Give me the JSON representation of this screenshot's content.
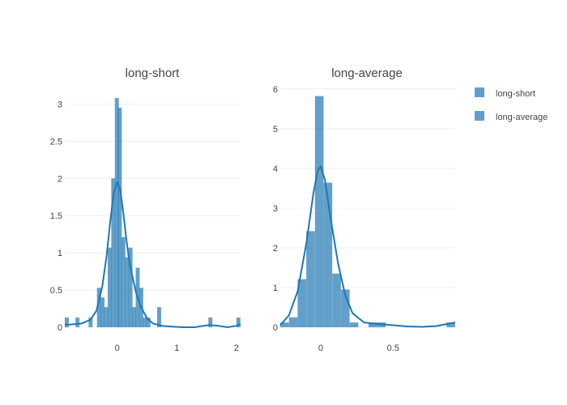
{
  "chart_data": [
    {
      "type": "bar",
      "title": "long-short",
      "xlabel": "",
      "ylabel": "",
      "xlim": [
        -0.88,
        2.07
      ],
      "ylim": [
        0,
        3.2
      ],
      "x_ticks": [
        0,
        1,
        2
      ],
      "x_tick_labels": [
        "0",
        "1",
        "2"
      ],
      "y_ticks": [
        0,
        0.5,
        1,
        1.5,
        2,
        2.5,
        3
      ],
      "y_tick_labels": [
        "0",
        "0.5",
        "1",
        "1.5",
        "2",
        "2.5",
        "3"
      ],
      "grid": true,
      "series_name": "long-short",
      "color": "#1f77b4",
      "bin_width": 0.0667,
      "bins": [
        {
          "x0": -0.88,
          "y": 0.13
        },
        {
          "x0": -0.7,
          "y": 0.13
        },
        {
          "x0": -0.48,
          "y": 0.13
        },
        {
          "x0": -0.34,
          "y": 0.53
        },
        {
          "x0": -0.28,
          "y": 0.4
        },
        {
          "x0": -0.22,
          "y": 0.27
        },
        {
          "x0": -0.16,
          "y": 1.07
        },
        {
          "x0": -0.1,
          "y": 2.0
        },
        {
          "x0": -0.04,
          "y": 3.08
        },
        {
          "x0": 0.01,
          "y": 2.95
        },
        {
          "x0": 0.07,
          "y": 1.21
        },
        {
          "x0": 0.13,
          "y": 0.94
        },
        {
          "x0": 0.19,
          "y": 1.07
        },
        {
          "x0": 0.25,
          "y": 0.27
        },
        {
          "x0": 0.31,
          "y": 0.8
        },
        {
          "x0": 0.37,
          "y": 0.53
        },
        {
          "x0": 0.43,
          "y": 0.13
        },
        {
          "x0": 0.49,
          "y": 0.13
        },
        {
          "x0": 0.67,
          "y": 0.27
        },
        {
          "x0": 1.53,
          "y": 0.13
        },
        {
          "x0": 2.0,
          "y": 0.13
        }
      ],
      "kde": {
        "x": [
          -0.88,
          -0.6,
          -0.45,
          -0.35,
          -0.25,
          -0.18,
          -0.12,
          -0.06,
          0.0,
          0.05,
          0.1,
          0.15,
          0.2,
          0.25,
          0.32,
          0.4,
          0.5,
          0.6,
          0.75,
          0.9,
          1.1,
          1.3,
          1.45,
          1.55,
          1.7,
          1.85,
          2.0,
          2.07
        ],
        "y": [
          0.03,
          0.05,
          0.1,
          0.22,
          0.55,
          0.95,
          1.4,
          1.8,
          1.95,
          1.85,
          1.55,
          1.2,
          0.9,
          0.7,
          0.45,
          0.27,
          0.12,
          0.05,
          0.02,
          0.01,
          0.0,
          0.0,
          0.02,
          0.03,
          0.02,
          0.0,
          0.02,
          0.04
        ]
      }
    },
    {
      "type": "bar",
      "title": "long-average",
      "xlabel": "",
      "ylabel": "",
      "xlim": [
        -0.28,
        0.93
      ],
      "ylim": [
        0,
        6.2
      ],
      "x_ticks": [
        0,
        0.5
      ],
      "x_tick_labels": [
        "0",
        "0.5"
      ],
      "y_ticks": [
        0,
        1,
        2,
        3,
        4,
        5,
        6
      ],
      "y_tick_labels": [
        "0",
        "1",
        "2",
        "3",
        "4",
        "5",
        "6"
      ],
      "grid": true,
      "series_name": "long-average",
      "color": "#1f77b4",
      "bin_width": 0.0595,
      "bins": [
        {
          "x0": -0.28,
          "y": 0.12
        },
        {
          "x0": -0.22,
          "y": 0.25
        },
        {
          "x0": -0.16,
          "y": 1.21
        },
        {
          "x0": -0.1,
          "y": 2.42
        },
        {
          "x0": -0.04,
          "y": 5.82
        },
        {
          "x0": 0.02,
          "y": 3.64
        },
        {
          "x0": 0.08,
          "y": 1.35
        },
        {
          "x0": 0.14,
          "y": 0.95
        },
        {
          "x0": 0.2,
          "y": 0.12
        },
        {
          "x0": 0.33,
          "y": 0.12
        },
        {
          "x0": 0.39,
          "y": 0.12
        },
        {
          "x0": 0.87,
          "y": 0.12
        }
      ],
      "kde": {
        "x": [
          -0.28,
          -0.22,
          -0.16,
          -0.1,
          -0.05,
          -0.02,
          0.0,
          0.03,
          0.07,
          0.12,
          0.17,
          0.22,
          0.3,
          0.4,
          0.5,
          0.6,
          0.7,
          0.8,
          0.87,
          0.93
        ],
        "y": [
          0.05,
          0.3,
          0.9,
          2.1,
          3.4,
          3.95,
          4.05,
          3.7,
          2.7,
          1.6,
          0.8,
          0.35,
          0.12,
          0.08,
          0.05,
          0.02,
          0.01,
          0.03,
          0.08,
          0.12
        ]
      }
    }
  ],
  "legend": [
    {
      "label": "long-short",
      "color": "#1f77b4"
    },
    {
      "label": "long-average",
      "color": "#1f77b4"
    }
  ]
}
